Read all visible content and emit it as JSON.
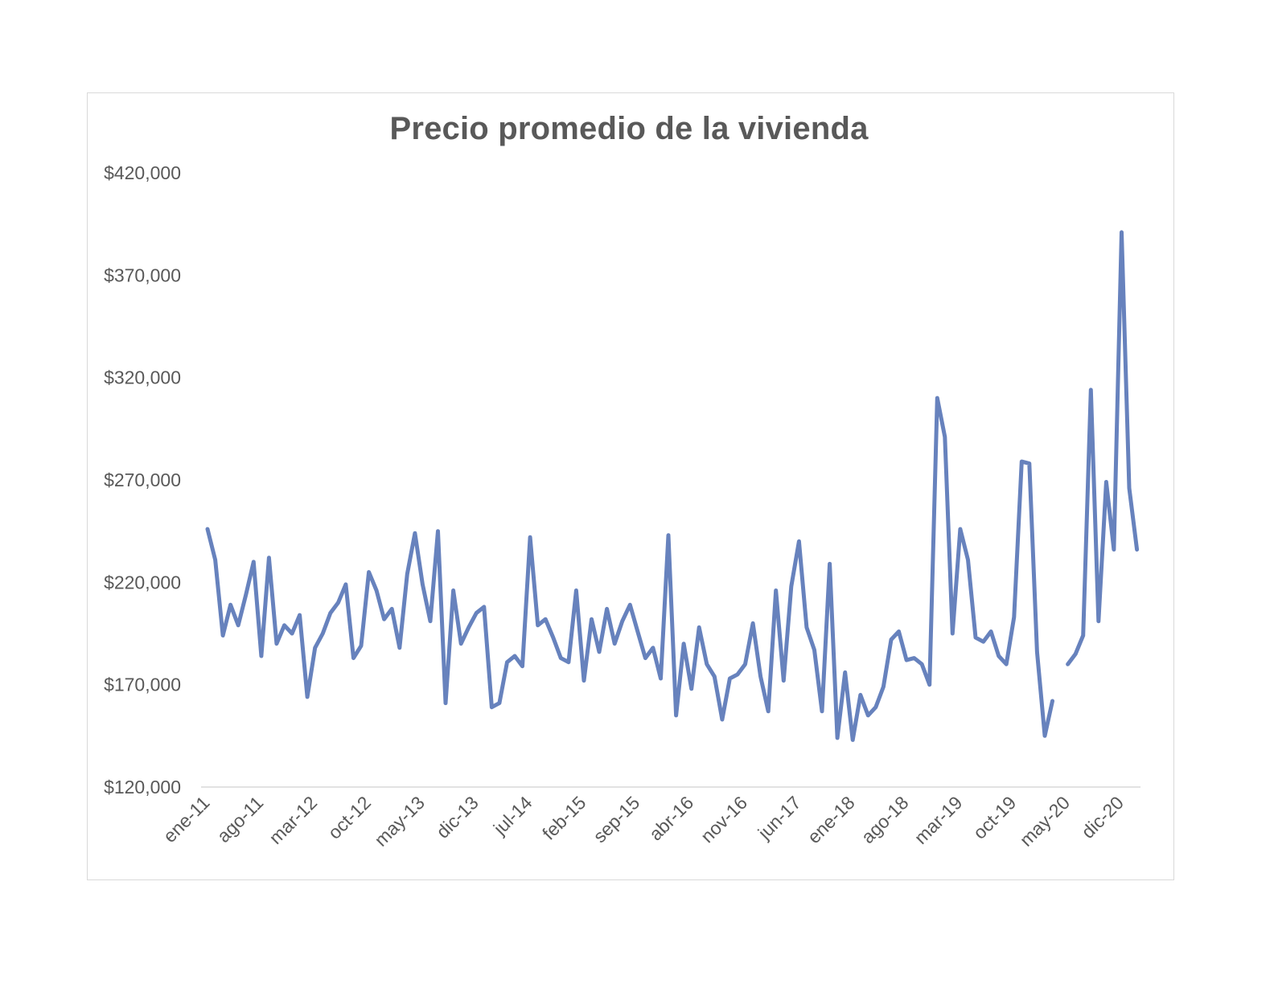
{
  "chart_data": {
    "type": "line",
    "title": "Precio promedio de la vivienda",
    "xlabel": "",
    "ylabel": "",
    "ylim": [
      120000,
      420000
    ],
    "y_ticks": [
      120000,
      170000,
      220000,
      270000,
      320000,
      370000,
      420000
    ],
    "y_tick_labels": [
      "$120,000",
      "$170,000",
      "$220,000",
      "$270,000",
      "$320,000",
      "$370,000",
      "$420,000"
    ],
    "x_tick_labels": [
      "ene-11",
      "ago-11",
      "mar-12",
      "oct-12",
      "may-13",
      "dic-13",
      "jul-14",
      "feb-15",
      "sep-15",
      "abr-16",
      "nov-16",
      "jun-17",
      "ene-18",
      "ago-18",
      "mar-19",
      "oct-19",
      "may-20",
      "dic-20"
    ],
    "x_tick_every_months": 7,
    "start_month": "ene-11",
    "grid": false,
    "legend": "none",
    "series": [
      {
        "color": "#6782bd",
        "values": [
          246000,
          231000,
          194000,
          209000,
          199000,
          214000,
          230000,
          184000,
          232000,
          190000,
          199000,
          195000,
          204000,
          164000,
          188000,
          195000,
          205000,
          210000,
          219000,
          183000,
          189000,
          225000,
          216000,
          202000,
          207000,
          188000,
          224000,
          244000,
          219000,
          201000,
          245000,
          161000,
          216000,
          190000,
          198000,
          205000,
          208000,
          159000,
          161000,
          181000,
          184000,
          179000,
          242000,
          199000,
          202000,
          193000,
          183000,
          181000,
          216000,
          172000,
          202000,
          186000,
          207000,
          190000,
          201000,
          209000,
          196000,
          183000,
          188000,
          173000,
          243000,
          155000,
          190000,
          168000,
          198000,
          180000,
          174000,
          153000,
          173000,
          175000,
          180000,
          200000,
          174000,
          157000,
          216000,
          172000,
          218000,
          240000,
          198000,
          187000,
          157000,
          229000,
          144000,
          176000,
          143000,
          165000,
          155000,
          159000,
          169000,
          192000,
          196000,
          182000,
          183000,
          180000,
          170000,
          310000,
          291000,
          195000,
          246000,
          231000,
          193000,
          191000,
          196000,
          184000,
          180000,
          203000,
          279000,
          278000,
          186000,
          145000,
          162000,
          null,
          180000,
          185000,
          194000,
          314000,
          201000,
          269000,
          236000,
          391000,
          266000,
          236000
        ]
      }
    ]
  }
}
